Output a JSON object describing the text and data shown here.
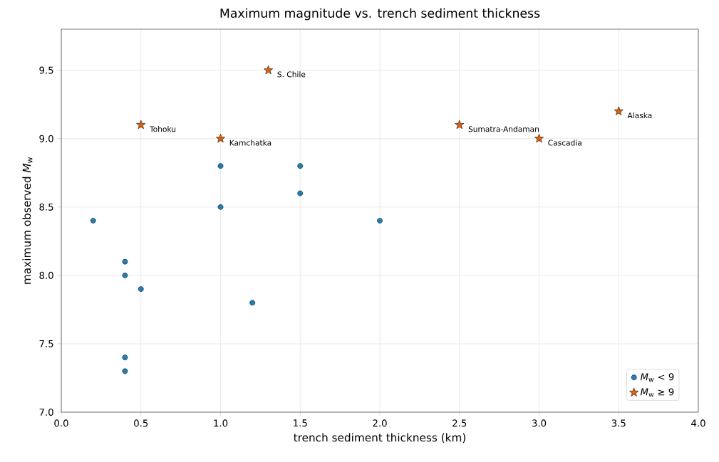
{
  "chart_data": {
    "type": "scatter",
    "title": "Maximum magnitude vs. trench sediment thickness",
    "xlabel": "trench sediment thickness (km)",
    "ylabel": "maximum observed *M*$_{w}$",
    "xlim": [
      0,
      4
    ],
    "ylim": [
      7.0,
      9.8
    ],
    "xticks": [
      {
        "value": 0,
        "label": "0.0"
      },
      {
        "value": 0.5,
        "label": "0.5"
      },
      {
        "value": 1,
        "label": "1.0"
      },
      {
        "value": 1.5,
        "label": "1.5"
      },
      {
        "value": 2,
        "label": "2.0"
      },
      {
        "value": 2.5,
        "label": "2.5"
      },
      {
        "value": 3,
        "label": "3.0"
      },
      {
        "value": 3.5,
        "label": "3.5"
      },
      {
        "value": 4,
        "label": "4.0"
      }
    ],
    "yticks": [
      {
        "value": 7,
        "label": "7.0"
      },
      {
        "value": 7.5,
        "label": "7.5"
      },
      {
        "value": 8,
        "label": "8.0"
      },
      {
        "value": 8.5,
        "label": "8.5"
      },
      {
        "value": 9,
        "label": "9.0"
      },
      {
        "value": 9.5,
        "label": "9.5"
      }
    ],
    "grid": true,
    "legend": "bottom right",
    "series": [
      {
        "name": "*M*$_{w}$ < 9",
        "color": "#2080b8",
        "marker": "circle",
        "x": [
          0.2,
          0.4,
          0.4,
          0.5,
          0.4,
          0.4,
          1.0,
          1.0,
          1.2,
          1.5,
          1.5,
          2.0
        ],
        "values": [
          8.4,
          8.1,
          8.0,
          7.9,
          7.4,
          7.3,
          8.8,
          8.5,
          7.8,
          8.8,
          8.6,
          8.4
        ]
      },
      {
        "name": "*M*$_{w}$ ≥ 9",
        "color": "#e0600a",
        "marker": "star",
        "x": [
          0.5,
          1.0,
          1.3,
          2.5,
          3.0,
          3.5
        ],
        "values": [
          9.1,
          9.0,
          9.5,
          9.1,
          9.0,
          9.2
        ]
      }
    ],
    "annotations": [
      {
        "text": "Tohoku",
        "x": 0.5,
        "y": 9.1
      },
      {
        "text": "Kamchatka",
        "x": 1.0,
        "y": 9.0
      },
      {
        "text": "S. Chile",
        "x": 1.3,
        "y": 9.5
      },
      {
        "text": "Sumatra-Andaman",
        "x": 2.5,
        "y": 9.1
      },
      {
        "text": "Cascadia",
        "x": 3.0,
        "y": 9.0
      },
      {
        "text": "Alaska",
        "x": 3.5,
        "y": 9.2
      }
    ]
  }
}
